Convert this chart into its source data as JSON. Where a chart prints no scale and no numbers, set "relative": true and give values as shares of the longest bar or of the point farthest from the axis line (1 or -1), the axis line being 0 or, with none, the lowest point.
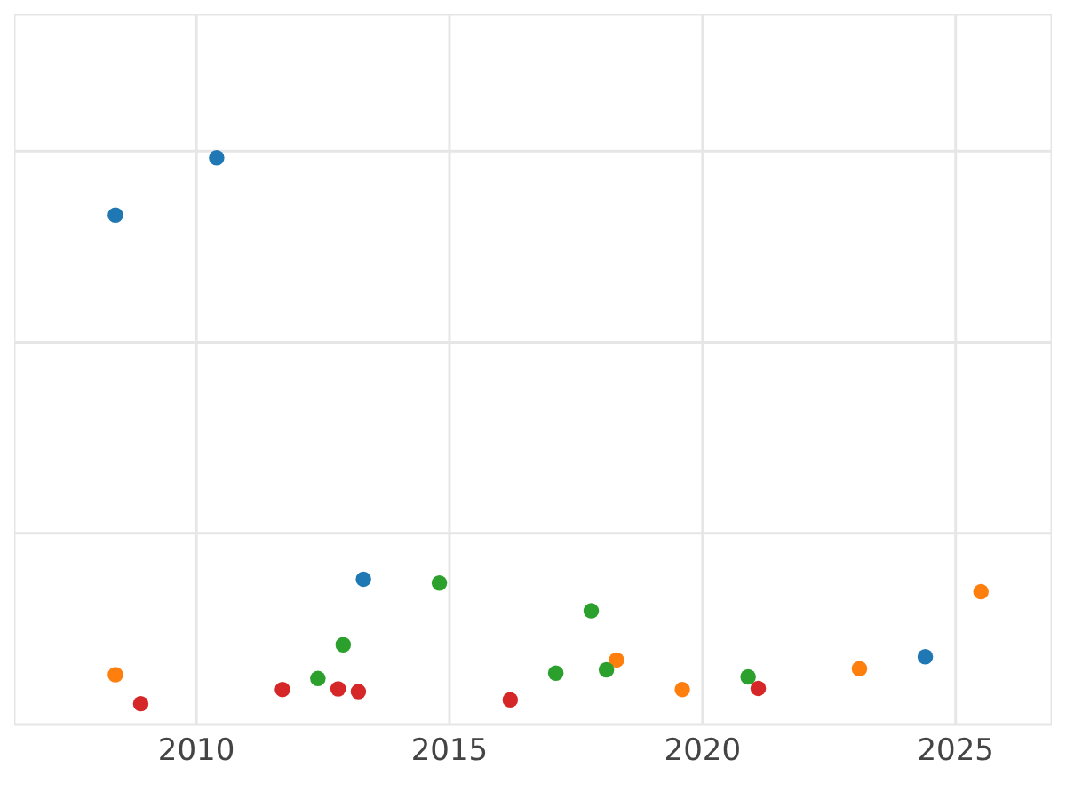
{
  "chart_data": {
    "type": "scatter",
    "relative": true,
    "grid": true,
    "marker": "circle",
    "legend": false,
    "xlim": [
      2006.4,
      2026.9
    ],
    "xticks": [
      2010,
      2015,
      2020,
      2025
    ],
    "series": [
      {
        "color": "#1f77b4",
        "x": [
          2008.4,
          2010.4,
          2013.3,
          2024.4
        ],
        "values": [
          0.895,
          1,
          0.228,
          0.086
        ]
      },
      {
        "color": "#ff7f0e",
        "x": [
          2008.4,
          2018.3,
          2019.6,
          2023.1,
          2025.5
        ],
        "values": [
          0.053,
          0.08,
          0.026,
          0.064,
          0.205
        ]
      },
      {
        "color": "#2ca02c",
        "x": [
          2012.4,
          2012.9,
          2014.8,
          2017.1,
          2017.8,
          2018.1,
          2020.9
        ],
        "values": [
          0.046,
          0.108,
          0.221,
          0.056,
          0.17,
          0.062,
          0.049
        ]
      },
      {
        "color": "#d62728",
        "x": [
          2008.9,
          2011.7,
          2012.8,
          2013.2,
          2016.2,
          2021.1
        ],
        "values": [
          0,
          0.026,
          0.027,
          0.022,
          0.007,
          0.028
        ]
      }
    ]
  }
}
